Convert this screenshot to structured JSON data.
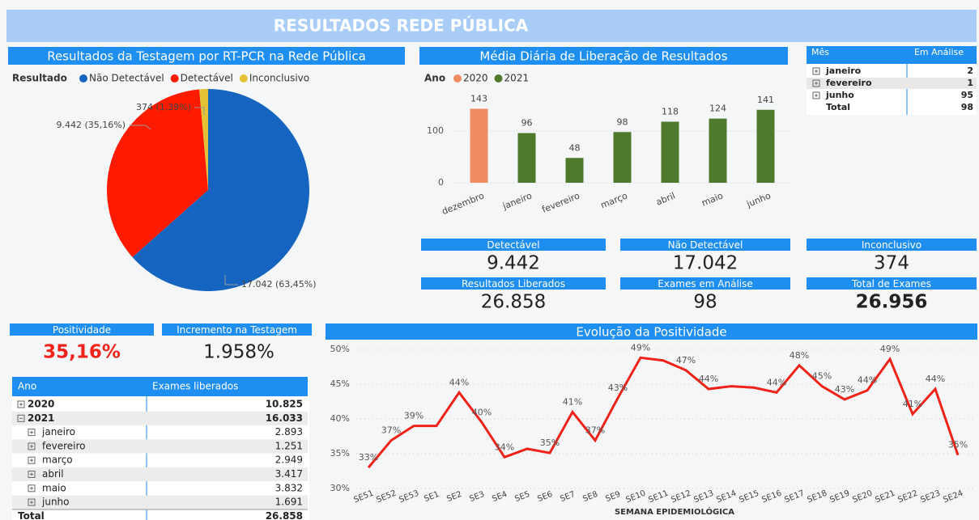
{
  "header": {
    "title": "RESULTADOS REDE PÚBLICA"
  },
  "chart_data": [
    {
      "type": "pie",
      "title": "Resultados da Testagem por RT-PCR na Rede Pública",
      "legend_title": "Resultado",
      "categories": [
        "Não Detectável",
        "Detectável",
        "Inconclusivo"
      ],
      "values": [
        17042,
        9442,
        374
      ],
      "value_labels": [
        "17.042 (63,45%)",
        "9.442 (35,16%)",
        "374 (1,39%)"
      ],
      "colors": [
        "#1565c0",
        "#ff1a00",
        "#e3c335"
      ]
    },
    {
      "type": "bar",
      "title": "Média Diária de Liberação de Resultados",
      "legend_title": "Ano",
      "categories": [
        "dezembro",
        "janeiro",
        "fevereiro",
        "março",
        "abril",
        "maio",
        "junho"
      ],
      "series": [
        {
          "name": "2020",
          "color": "#ef8c62",
          "values": [
            143,
            null,
            null,
            null,
            null,
            null,
            null
          ]
        },
        {
          "name": "2021",
          "color": "#4f7a2c",
          "values": [
            null,
            96,
            48,
            98,
            118,
            124,
            141
          ]
        }
      ],
      "ylim": [
        0,
        150
      ],
      "yticks": [
        0,
        100
      ],
      "grid": true
    },
    {
      "type": "line",
      "title": "Evolução da Positividade",
      "x_label": "SEMANA EPIDEMIOLÓGICA",
      "categories": [
        "SE51",
        "SE52",
        "SE53",
        "SE1",
        "SE2",
        "SE3",
        "SE4",
        "SE5",
        "SE6",
        "SE7",
        "SE8",
        "SE9",
        "SE10",
        "SE11",
        "SE12",
        "SE13",
        "SE14",
        "SE15",
        "SE16",
        "SE17",
        "SE18",
        "SE19",
        "SE20",
        "SE21",
        "SE22",
        "SE23",
        "SE24"
      ],
      "values": [
        33,
        36.9,
        39,
        39,
        43.8,
        39.5,
        34.5,
        35.7,
        35.1,
        41,
        36.9,
        43,
        48.8,
        48.4,
        47,
        44.3,
        44.7,
        44.5,
        43.8,
        47.7,
        44.7,
        42.8,
        44.1,
        48.6,
        40.7,
        44.3,
        34.8
      ],
      "value_labels": [
        "33%",
        "37%",
        "39%",
        null,
        "44%",
        "40%",
        "34%",
        null,
        "35%",
        "41%",
        "37%",
        "43%",
        "49%",
        null,
        "47%",
        "44%",
        null,
        null,
        "44%",
        "48%",
        "45%",
        "43%",
        "44%",
        "49%",
        "41%",
        "44%",
        "35%"
      ],
      "color": "#f0231a",
      "ylim": [
        30,
        50
      ],
      "yticks": [
        {
          "value": 30,
          "label": "30%"
        },
        {
          "value": 35,
          "label": "35%"
        },
        {
          "value": 40,
          "label": "40%"
        },
        {
          "value": 45,
          "label": "45%"
        },
        {
          "value": 50,
          "label": "50%"
        }
      ],
      "grid": true
    }
  ],
  "month_table": {
    "headers": [
      "Mês",
      "Em Análise"
    ],
    "rows": [
      [
        "janeiro",
        "2"
      ],
      [
        "fevereiro",
        "1"
      ],
      [
        "junho",
        "95"
      ],
      [
        "Total",
        "98"
      ]
    ]
  },
  "cards": [
    {
      "label": "Detectável",
      "value": "9.442"
    },
    {
      "label": "Não Detectável",
      "value": "17.042"
    },
    {
      "label": "Inconclusivo",
      "value": "374"
    },
    {
      "label": "Resultados Liberados",
      "value": "26.858"
    },
    {
      "label": "Exames em Análise",
      "value": "98"
    },
    {
      "label": "Total de Exames",
      "value": "26.956"
    }
  ],
  "positivity": {
    "label": "Positividade",
    "value": "35,16%"
  },
  "increment": {
    "label": "Incremento na Testagem",
    "value": "1.958%"
  },
  "year_table": {
    "headers": [
      "Ano",
      "Exames liberados"
    ],
    "rows": [
      [
        "2020",
        "10.825"
      ],
      [
        "2021",
        "16.033"
      ],
      [
        "janeiro",
        "2.893"
      ],
      [
        "fevereiro",
        "1.251"
      ],
      [
        "março",
        "2.949"
      ],
      [
        "abril",
        "3.417"
      ],
      [
        "maio",
        "3.832"
      ],
      [
        "junho",
        "1.691"
      ],
      [
        "Total",
        "26.858"
      ]
    ]
  }
}
